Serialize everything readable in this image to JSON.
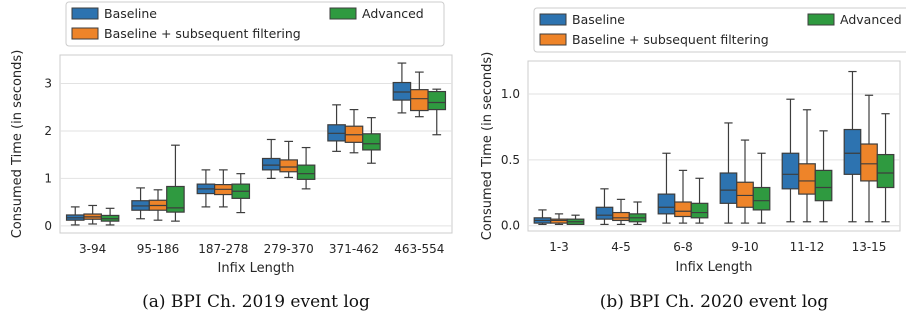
{
  "chart_data": [
    {
      "type": "box",
      "caption": "(a) BPI Ch. 2019 event log",
      "xlabel": "Infix Length",
      "ylabel": "Consumed Time (in seconds)",
      "ylim": [
        -0.15,
        3.6
      ],
      "yticks": [
        "0",
        "1",
        "2",
        "3"
      ],
      "grid": true,
      "legend": {
        "placement": "top",
        "entries": [
          "Baseline",
          "Baseline + subsequent filtering",
          "Advanced"
        ]
      },
      "colors": {
        "Baseline": "#2d73b0",
        "Baseline + subsequent filtering": "#ee8429",
        "Advanced": "#2f9a40"
      },
      "categories": [
        "3-94",
        "95-186",
        "187-278",
        "279-370",
        "371-462",
        "463-554"
      ],
      "series": [
        {
          "name": "Baseline",
          "boxes": [
            {
              "whislo": 0.02,
              "q1": 0.12,
              "med": 0.17,
              "q3": 0.23,
              "whishi": 0.4
            },
            {
              "whislo": 0.15,
              "q1": 0.33,
              "med": 0.42,
              "q3": 0.53,
              "whishi": 0.8
            },
            {
              "whislo": 0.4,
              "q1": 0.68,
              "med": 0.78,
              "q3": 0.88,
              "whishi": 1.18
            },
            {
              "whislo": 1.0,
              "q1": 1.18,
              "med": 1.28,
              "q3": 1.42,
              "whishi": 1.82
            },
            {
              "whislo": 1.57,
              "q1": 1.79,
              "med": 1.95,
              "q3": 2.13,
              "whishi": 2.55
            },
            {
              "whislo": 2.38,
              "q1": 2.65,
              "med": 2.82,
              "q3": 3.02,
              "whishi": 3.43
            }
          ]
        },
        {
          "name": "Baseline + subsequent filtering",
          "boxes": [
            {
              "whislo": 0.04,
              "q1": 0.14,
              "med": 0.19,
              "q3": 0.25,
              "whishi": 0.43
            },
            {
              "whislo": 0.12,
              "q1": 0.33,
              "med": 0.43,
              "q3": 0.54,
              "whishi": 0.76
            },
            {
              "whislo": 0.4,
              "q1": 0.66,
              "med": 0.77,
              "q3": 0.87,
              "whishi": 1.18
            },
            {
              "whislo": 1.02,
              "q1": 1.14,
              "med": 1.24,
              "q3": 1.39,
              "whishi": 1.78
            },
            {
              "whislo": 1.54,
              "q1": 1.76,
              "med": 1.92,
              "q3": 2.1,
              "whishi": 2.45
            },
            {
              "whislo": 2.3,
              "q1": 2.43,
              "med": 2.68,
              "q3": 2.87,
              "whishi": 3.24
            }
          ]
        },
        {
          "name": "Advanced",
          "boxes": [
            {
              "whislo": 0.02,
              "q1": 0.1,
              "med": 0.15,
              "q3": 0.22,
              "whishi": 0.37
            },
            {
              "whislo": 0.1,
              "q1": 0.29,
              "med": 0.38,
              "q3": 0.83,
              "whishi": 1.7
            },
            {
              "whislo": 0.28,
              "q1": 0.58,
              "med": 0.73,
              "q3": 0.88,
              "whishi": 1.1
            },
            {
              "whislo": 0.78,
              "q1": 0.98,
              "med": 1.1,
              "q3": 1.28,
              "whishi": 1.65
            },
            {
              "whislo": 1.32,
              "q1": 1.6,
              "med": 1.73,
              "q3": 1.94,
              "whishi": 2.28
            },
            {
              "whislo": 1.92,
              "q1": 2.45,
              "med": 2.6,
              "q3": 2.83,
              "whishi": 2.88
            }
          ]
        }
      ]
    },
    {
      "type": "box",
      "caption": "(b) BPI Ch. 2020 event log",
      "xlabel": "Infix Length",
      "ylabel": "Consumed Time (in seconds)",
      "ylim": [
        -0.04,
        1.25
      ],
      "yticks": [
        "0.0",
        "0.5",
        "1.0"
      ],
      "grid": true,
      "legend": {
        "placement": "top",
        "entries": [
          "Baseline",
          "Baseline + subsequent filtering",
          "Advanced"
        ]
      },
      "colors": {
        "Baseline": "#2d73b0",
        "Baseline + subsequent filtering": "#ee8429",
        "Advanced": "#2f9a40"
      },
      "categories": [
        "1-3",
        "4-5",
        "6-8",
        "9-10",
        "11-12",
        "13-15"
      ],
      "series": [
        {
          "name": "Baseline",
          "boxes": [
            {
              "whislo": 0.01,
              "q1": 0.02,
              "med": 0.04,
              "q3": 0.06,
              "whishi": 0.12
            },
            {
              "whislo": 0.01,
              "q1": 0.05,
              "med": 0.08,
              "q3": 0.14,
              "whishi": 0.28
            },
            {
              "whislo": 0.02,
              "q1": 0.09,
              "med": 0.14,
              "q3": 0.24,
              "whishi": 0.55
            },
            {
              "whislo": 0.02,
              "q1": 0.17,
              "med": 0.27,
              "q3": 0.4,
              "whishi": 0.78
            },
            {
              "whislo": 0.03,
              "q1": 0.28,
              "med": 0.39,
              "q3": 0.55,
              "whishi": 0.96
            },
            {
              "whislo": 0.03,
              "q1": 0.39,
              "med": 0.55,
              "q3": 0.73,
              "whishi": 1.17
            }
          ]
        },
        {
          "name": "Baseline + subsequent filtering",
          "boxes": [
            {
              "whislo": 0.01,
              "q1": 0.02,
              "med": 0.04,
              "q3": 0.05,
              "whishi": 0.09
            },
            {
              "whislo": 0.01,
              "q1": 0.04,
              "med": 0.06,
              "q3": 0.1,
              "whishi": 0.2
            },
            {
              "whislo": 0.02,
              "q1": 0.07,
              "med": 0.11,
              "q3": 0.18,
              "whishi": 0.42
            },
            {
              "whislo": 0.02,
              "q1": 0.14,
              "med": 0.23,
              "q3": 0.33,
              "whishi": 0.65
            },
            {
              "whislo": 0.03,
              "q1": 0.24,
              "med": 0.34,
              "q3": 0.47,
              "whishi": 0.88
            },
            {
              "whislo": 0.03,
              "q1": 0.34,
              "med": 0.47,
              "q3": 0.62,
              "whishi": 0.99
            }
          ]
        },
        {
          "name": "Advanced",
          "boxes": [
            {
              "whislo": 0.01,
              "q1": 0.01,
              "med": 0.03,
              "q3": 0.05,
              "whishi": 0.08
            },
            {
              "whislo": 0.01,
              "q1": 0.03,
              "med": 0.06,
              "q3": 0.09,
              "whishi": 0.18
            },
            {
              "whislo": 0.02,
              "q1": 0.06,
              "med": 0.1,
              "q3": 0.17,
              "whishi": 0.36
            },
            {
              "whislo": 0.02,
              "q1": 0.12,
              "med": 0.19,
              "q3": 0.29,
              "whishi": 0.55
            },
            {
              "whislo": 0.03,
              "q1": 0.19,
              "med": 0.29,
              "q3": 0.42,
              "whishi": 0.72
            },
            {
              "whislo": 0.03,
              "q1": 0.29,
              "med": 0.4,
              "q3": 0.54,
              "whishi": 0.85
            }
          ]
        }
      ]
    }
  ]
}
